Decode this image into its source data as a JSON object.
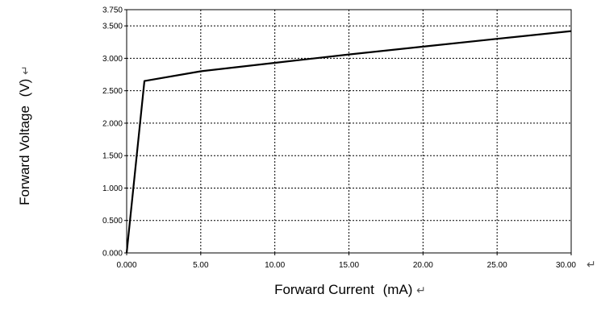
{
  "chart_data": {
    "type": "line",
    "title": "",
    "xlabel": "Forward Current",
    "xunit": "(mA)",
    "ylabel": "Forward Voltage",
    "yunit": "(V)",
    "xlim": [
      0,
      30
    ],
    "ylim": [
      0,
      3.75
    ],
    "xticks": [
      0,
      5,
      10,
      15,
      20,
      25,
      30
    ],
    "xtick_labels": [
      "0.000",
      "5.00",
      "10.00",
      "15.00",
      "20.00",
      "25.00",
      "30.00"
    ],
    "yticks": [
      0,
      0.5,
      1.0,
      1.5,
      2.0,
      2.5,
      3.0,
      3.5,
      3.75
    ],
    "ytick_labels": [
      "0.000",
      "0.500",
      "1.000",
      "1.500",
      "2.000",
      "2.500",
      "3.000",
      "3.500",
      "3.750"
    ],
    "grid": true,
    "legend": "none",
    "line_color": "#000000",
    "series": [
      {
        "x": [
          0,
          1.2,
          5,
          10,
          15,
          20,
          25,
          30
        ],
        "y": [
          0,
          2.65,
          2.8,
          2.93,
          3.06,
          3.18,
          3.3,
          3.42
        ]
      }
    ]
  },
  "return_mark": "↵"
}
